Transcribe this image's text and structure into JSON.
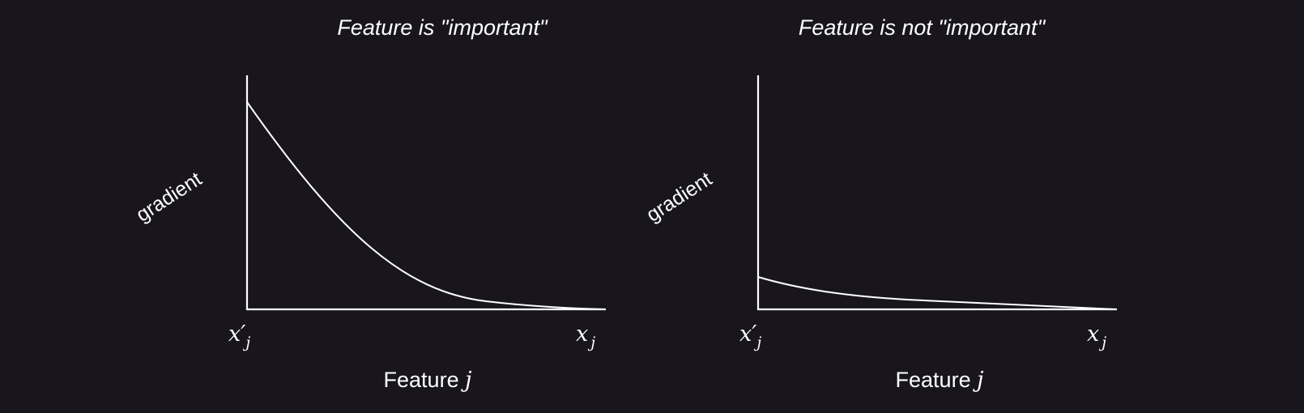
{
  "panels": [
    {
      "title": "Feature is \"important\"",
      "ylabel": "gradient",
      "xlabel_text": "Feature ",
      "xlabel_var": "j",
      "tick_left_main": "x",
      "tick_left_prime": "′",
      "tick_left_sub": "j",
      "tick_right_main": "x",
      "tick_right_sub": "j"
    },
    {
      "title": "Feature is not \"important\"",
      "ylabel": "gradient",
      "xlabel_text": "Feature ",
      "xlabel_var": "j",
      "tick_left_main": "x",
      "tick_left_prime": "′",
      "tick_left_sub": "j",
      "tick_right_main": "x",
      "tick_right_sub": "j"
    }
  ],
  "colors": {
    "background": "#18161c",
    "foreground": "#ffffff"
  }
}
